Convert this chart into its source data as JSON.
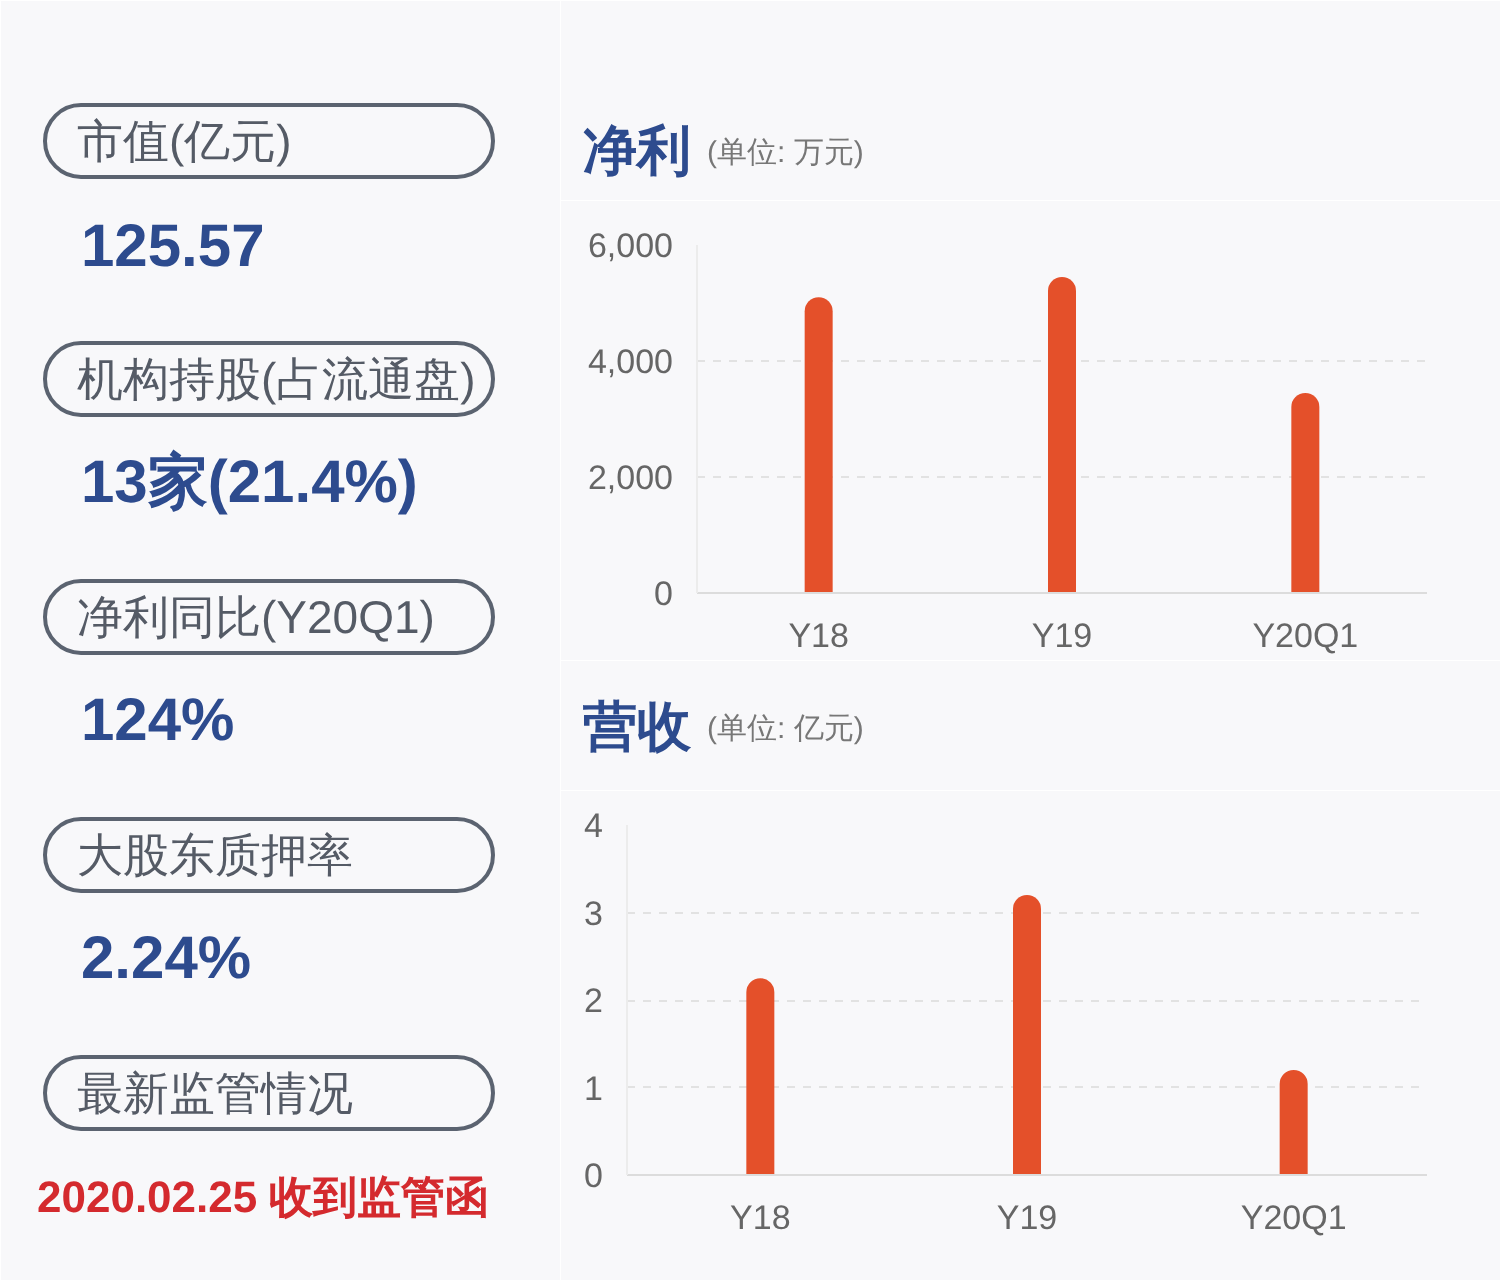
{
  "chart_data": [
    {
      "type": "other",
      "annotations": [
        "市值(亿元)",
        "125.57",
        "机构持股(占流通盘)",
        "13家(21.4%)",
        "净利同比(Y20Q1)",
        "124%",
        "大股东质押率",
        "2.24%",
        "最新监管情况",
        "2020.02.25 收到监管函"
      ]
    },
    {
      "type": "bar",
      "title": "净利",
      "subtitle": "(单位: 万元)",
      "categories": [
        "Y18",
        "Y19",
        "Y20Q1"
      ],
      "values": [
        5100,
        5450,
        3450
      ],
      "color": "#e4502a",
      "ylim": [
        0,
        6000
      ],
      "yticks": [
        0,
        {
          "value": 2000,
          "label": "2,000"
        },
        {
          "value": 4000,
          "label": "4,000"
        },
        {
          "value": 6000,
          "label": "6,000"
        }
      ],
      "grid": "y"
    },
    {
      "type": "bar",
      "title": "营收",
      "subtitle": "(单位: 亿元)",
      "categories": [
        "Y18",
        "Y19",
        "Y20Q1"
      ],
      "values": [
        2.25,
        3.2,
        1.2
      ],
      "color": "#e4502a",
      "ylim": [
        0,
        4
      ],
      "yticks": [
        0,
        1,
        2,
        3,
        4
      ],
      "grid": "y"
    }
  ]
}
